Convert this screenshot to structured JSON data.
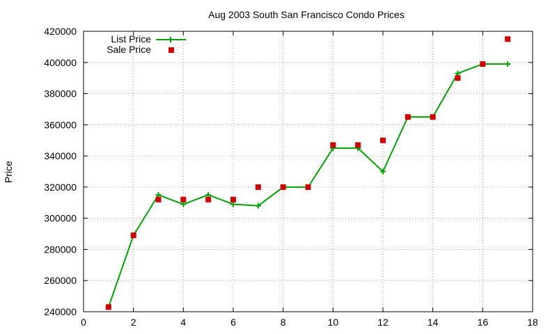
{
  "chart_data": {
    "type": "line",
    "title": "Aug 2003 South San Francisco Condo Prices",
    "xlabel": "",
    "ylabel": "Price",
    "xlim": [
      0,
      18
    ],
    "ylim": [
      240000,
      420000
    ],
    "xticks": [
      0,
      2,
      4,
      6,
      8,
      10,
      12,
      14,
      16,
      18
    ],
    "yticks": [
      240000,
      260000,
      280000,
      300000,
      320000,
      340000,
      360000,
      380000,
      400000,
      420000
    ],
    "grid": true,
    "legend_position": "top-left",
    "series": [
      {
        "name": "List Price",
        "style": "line-with-plus-markers",
        "color": "#00a000",
        "x": [
          1,
          2,
          3,
          4,
          5,
          6,
          7,
          8,
          9,
          10,
          11,
          12,
          13,
          14,
          15,
          16,
          17
        ],
        "y": [
          243000,
          289000,
          315000,
          309000,
          315000,
          309000,
          308000,
          320000,
          320000,
          345000,
          345000,
          330000,
          365000,
          365000,
          393000,
          399000,
          399000
        ]
      },
      {
        "name": "Sale Price",
        "style": "square-markers",
        "color": "#cc0000",
        "x": [
          1,
          2,
          3,
          4,
          5,
          6,
          7,
          8,
          9,
          10,
          11,
          12,
          13,
          14,
          15,
          16,
          17
        ],
        "y": [
          243000,
          289000,
          312000,
          312000,
          312000,
          312000,
          320000,
          320000,
          320000,
          347000,
          347000,
          350000,
          365000,
          365000,
          390000,
          399000,
          415000
        ]
      }
    ]
  }
}
